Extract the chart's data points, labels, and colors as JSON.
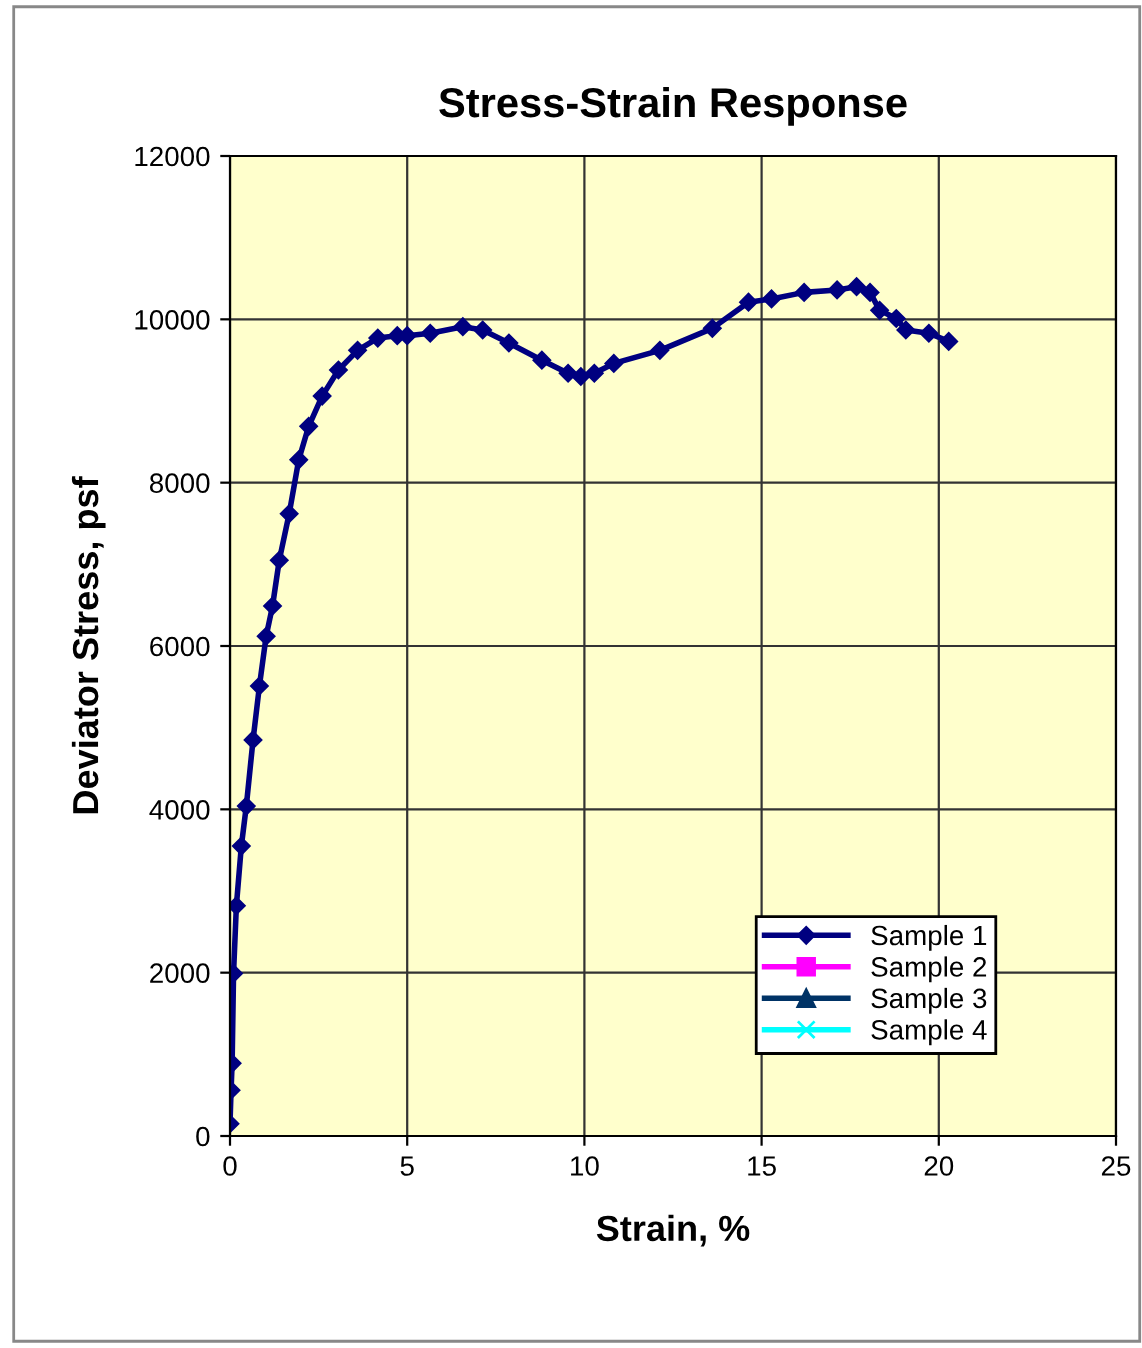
{
  "chart_data": {
    "type": "line",
    "title": "Stress-Strain Response",
    "xlabel": "Strain, %",
    "ylabel": "Deviator Stress, psf",
    "xlim": [
      0,
      25
    ],
    "xticks": [
      0,
      5,
      10,
      15,
      20,
      25
    ],
    "ylim": [
      0,
      12000
    ],
    "yticks": [
      0,
      2000,
      4000,
      6000,
      8000,
      10000,
      12000
    ],
    "grid": true,
    "legend": "bottom right",
    "series": [
      {
        "name": "Sample 1",
        "color": "#000080",
        "marker": "diamond",
        "x": [
          0,
          0.03,
          0.06,
          0.1,
          0.18,
          0.32,
          0.46,
          0.65,
          0.83,
          1.02,
          1.2,
          1.39,
          1.67,
          1.94,
          2.22,
          2.6,
          3.06,
          3.6,
          4.17,
          4.72,
          5.0,
          5.65,
          6.57,
          7.13,
          7.87,
          8.8,
          9.54,
          9.9,
          10.28,
          10.83,
          12.13,
          13.61,
          14.63,
          15.28,
          16.2,
          17.13,
          17.68,
          18.06,
          18.33,
          18.8,
          19.07,
          19.72,
          20.28
        ],
        "values": [
          150,
          560,
          890,
          1990,
          2820,
          3550,
          4040,
          4850,
          5510,
          6120,
          6490,
          7050,
          7620,
          8280,
          8690,
          9060,
          9380,
          9620,
          9770,
          9800,
          9800,
          9830,
          9910,
          9870,
          9710,
          9500,
          9340,
          9300,
          9340,
          9460,
          9620,
          9890,
          10210,
          10250,
          10330,
          10360,
          10400,
          10330,
          10110,
          10010,
          9870,
          9830,
          9730
        ]
      },
      {
        "name": "Sample 2",
        "color": "#ff00ff",
        "marker": "square"
      },
      {
        "name": "Sample 3",
        "color": "#003366",
        "marker": "triangle"
      },
      {
        "name": "Sample 4",
        "color": "#00ffff",
        "marker": "cross"
      }
    ]
  }
}
